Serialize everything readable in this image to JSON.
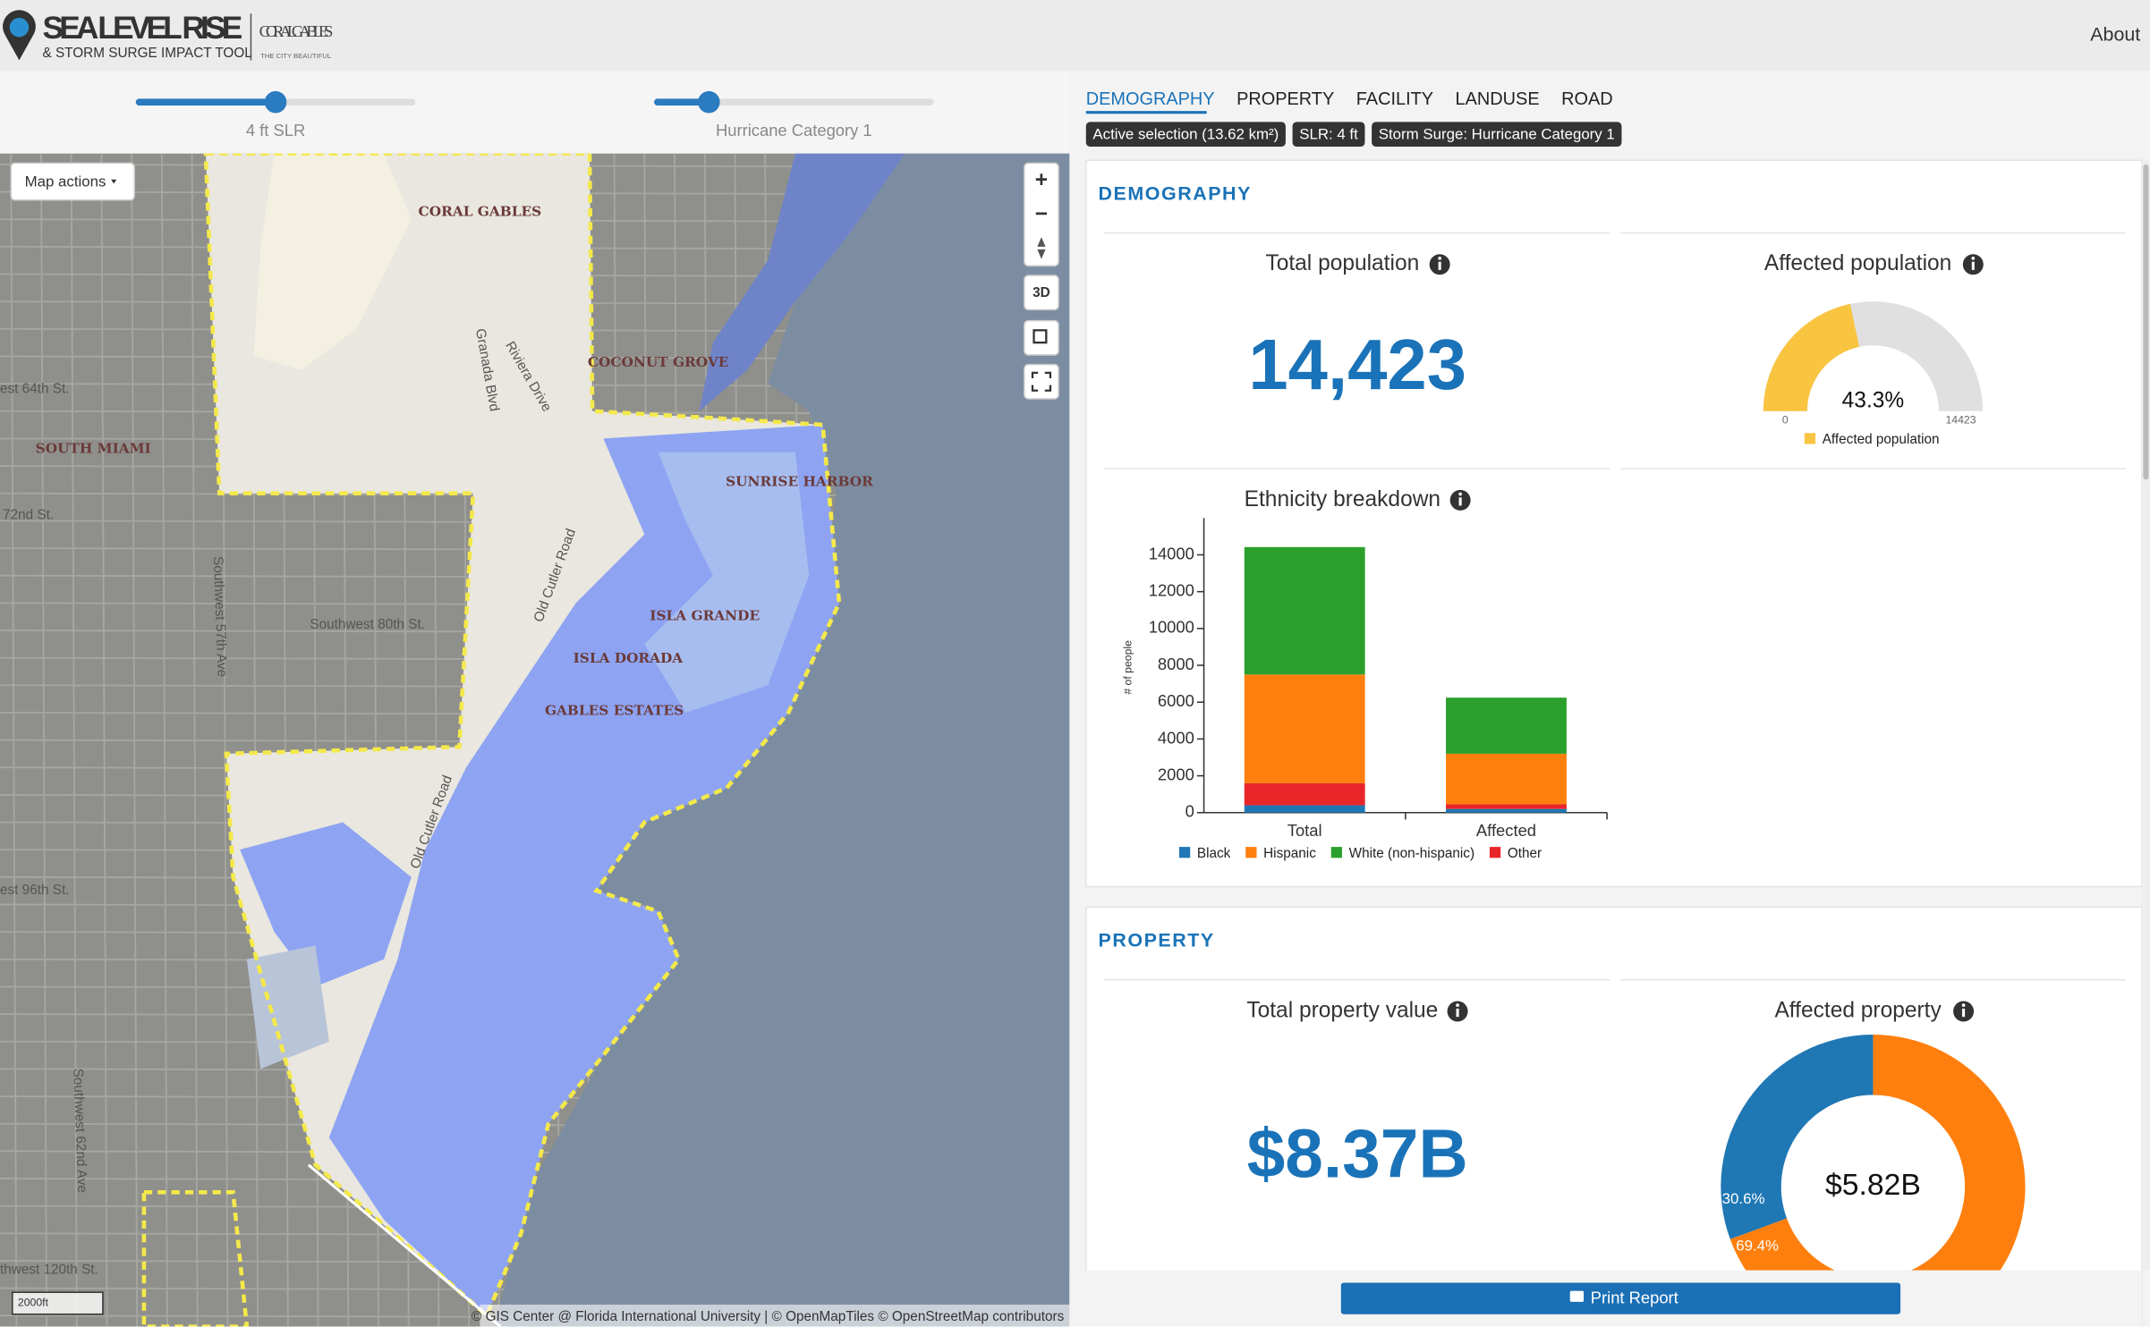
{
  "header": {
    "title": "SEA LEVEL RISE",
    "subtitle": "& STORM SURGE IMPACT TOOL",
    "brand": "CORAL GABLES",
    "brand_tagline": "THE CITY BEAUTIFUL",
    "about": "About"
  },
  "controls": {
    "slr_label": "4 ft SLR",
    "surge_label": "Hurricane Category 1"
  },
  "tabs": [
    "DEMOGRAPHY",
    "PROPERTY",
    "FACILITY",
    "LANDUSE",
    "ROAD"
  ],
  "badges": [
    "Active selection (13.62 km²)",
    "SLR: 4 ft",
    "Storm Surge: Hurricane Category 1"
  ],
  "map": {
    "actions": "Map actions",
    "zoom_in": "+",
    "zoom_out": "−",
    "three_d": "3D",
    "scale": "2000ft",
    "attribution": "© GIS Center @ Florida International University | © OpenMapTiles © OpenStreetMap contributors",
    "labels": [
      "CORAL GABLES",
      "COCONUT GROVE",
      "SOUTH MIAMI",
      "SUNRISE HARBOR",
      "ISLA GRANDE",
      "ISLA DORADA",
      "GABLES ESTATES",
      "Southwest 80th St.",
      "Old Cutler Road",
      "Old Cutler Road",
      "Granada Blvd",
      "Riviera Drive",
      "Southwest 57th Ave",
      "Southwest 62nd Ave",
      "est 64th St.",
      "72nd St.",
      "est 96th St.",
      "thwest 120th St."
    ]
  },
  "demography": {
    "heading": "DEMOGRAPHY",
    "total_title": "Total population",
    "total_value": "14,423",
    "affected_title": "Affected population",
    "gauge": {
      "type": "gauge",
      "value": 43.3,
      "value_labels": "43.3%",
      "min": 0,
      "max": 14423,
      "color": "#f9c440",
      "track_color": "#e0e0e0",
      "legend": "Affected population"
    },
    "ethnicity": {
      "type": "bar",
      "title": "Ethnicity breakdown",
      "ylabel": "# of people",
      "categories": [
        "Total",
        "Affected"
      ],
      "stacked": true,
      "series": [
        {
          "name": "Black",
          "color": "#1f77b4",
          "values": [
            400,
            200
          ]
        },
        {
          "name": "Hispanic",
          "color": "#ff7f0e",
          "values": [
            5900,
            2750
          ]
        },
        {
          "name": "White (non-hispanic)",
          "color": "#2ca02c",
          "values": [
            6923,
            3045
          ]
        },
        {
          "name": "Other",
          "color": "#e8262a",
          "values": [
            1200,
            250
          ]
        }
      ],
      "ylim": [
        0,
        16000
      ],
      "yticks": [
        0,
        2000,
        4000,
        6000,
        8000,
        10000,
        12000,
        14000
      ]
    }
  },
  "property": {
    "heading": "PROPERTY",
    "total_title": "Total property value",
    "total_value": "$8.37B",
    "affected_title": "Affected property",
    "donut": {
      "type": "pie",
      "center_label": "$5.82B",
      "values": [
        69.4,
        30.6
      ],
      "value_labels": [
        "69.4%",
        "30.6%"
      ],
      "colors": [
        "#ff7f0e",
        "#1f77b4"
      ]
    }
  },
  "footer": {
    "print": "Print Report"
  }
}
